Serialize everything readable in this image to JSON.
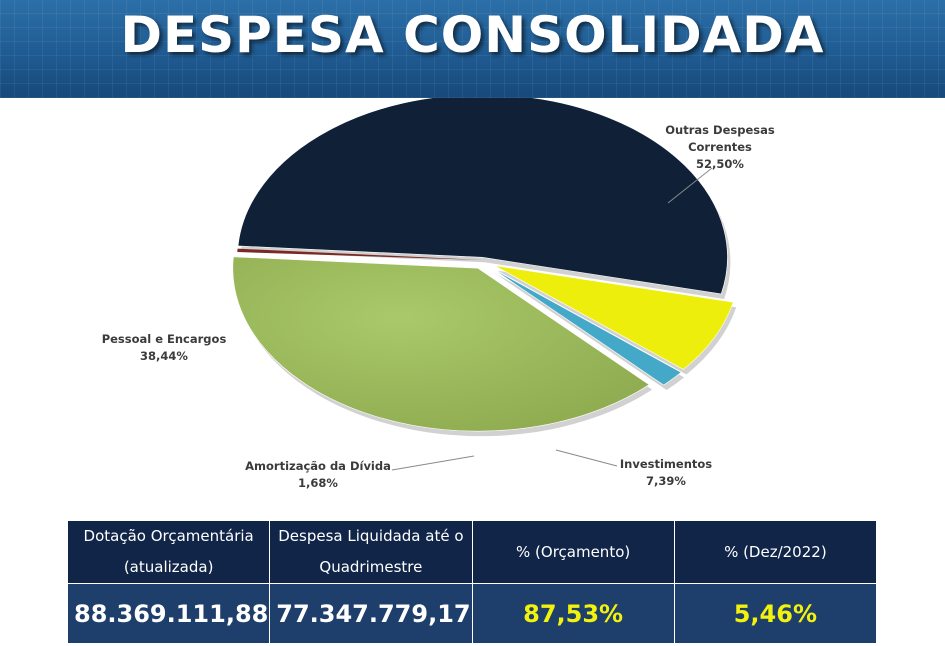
{
  "header": {
    "title": "DESPESA CONSOLIDADA"
  },
  "chart_data": {
    "type": "pie",
    "title": "",
    "slices": [
      {
        "label_lines": [
          "Outras Despesas",
          "Correntes"
        ],
        "value_label": "52,50%",
        "value": 52.5,
        "color": "#0f2037"
      },
      {
        "label_lines": [
          "Investimentos"
        ],
        "value_label": "7,39%",
        "value": 7.39,
        "color": "#eeee0c"
      },
      {
        "label_lines": [
          "Amortização da Dívida"
        ],
        "value_label": "1,68%",
        "value": 1.68,
        "color": "#44a9c8"
      },
      {
        "label_lines": [
          "Pessoal e Encargos"
        ],
        "value_label": "38,44%",
        "value": 38.44,
        "color": "#9bbb59"
      }
    ]
  },
  "summary": {
    "headers": [
      [
        "Dotação Orçamentária",
        "(atualizada)"
      ],
      [
        "Despesa Liquidada até o",
        "Quadrimestre"
      ],
      [
        "%  (Orçamento)"
      ],
      [
        "%  (Dez/2022)"
      ]
    ],
    "values": [
      "88.369.111,88",
      "77.347.779,17",
      "87,53%",
      "5,46%"
    ],
    "value_colors": [
      "white",
      "white",
      "yellow",
      "yellow"
    ]
  }
}
